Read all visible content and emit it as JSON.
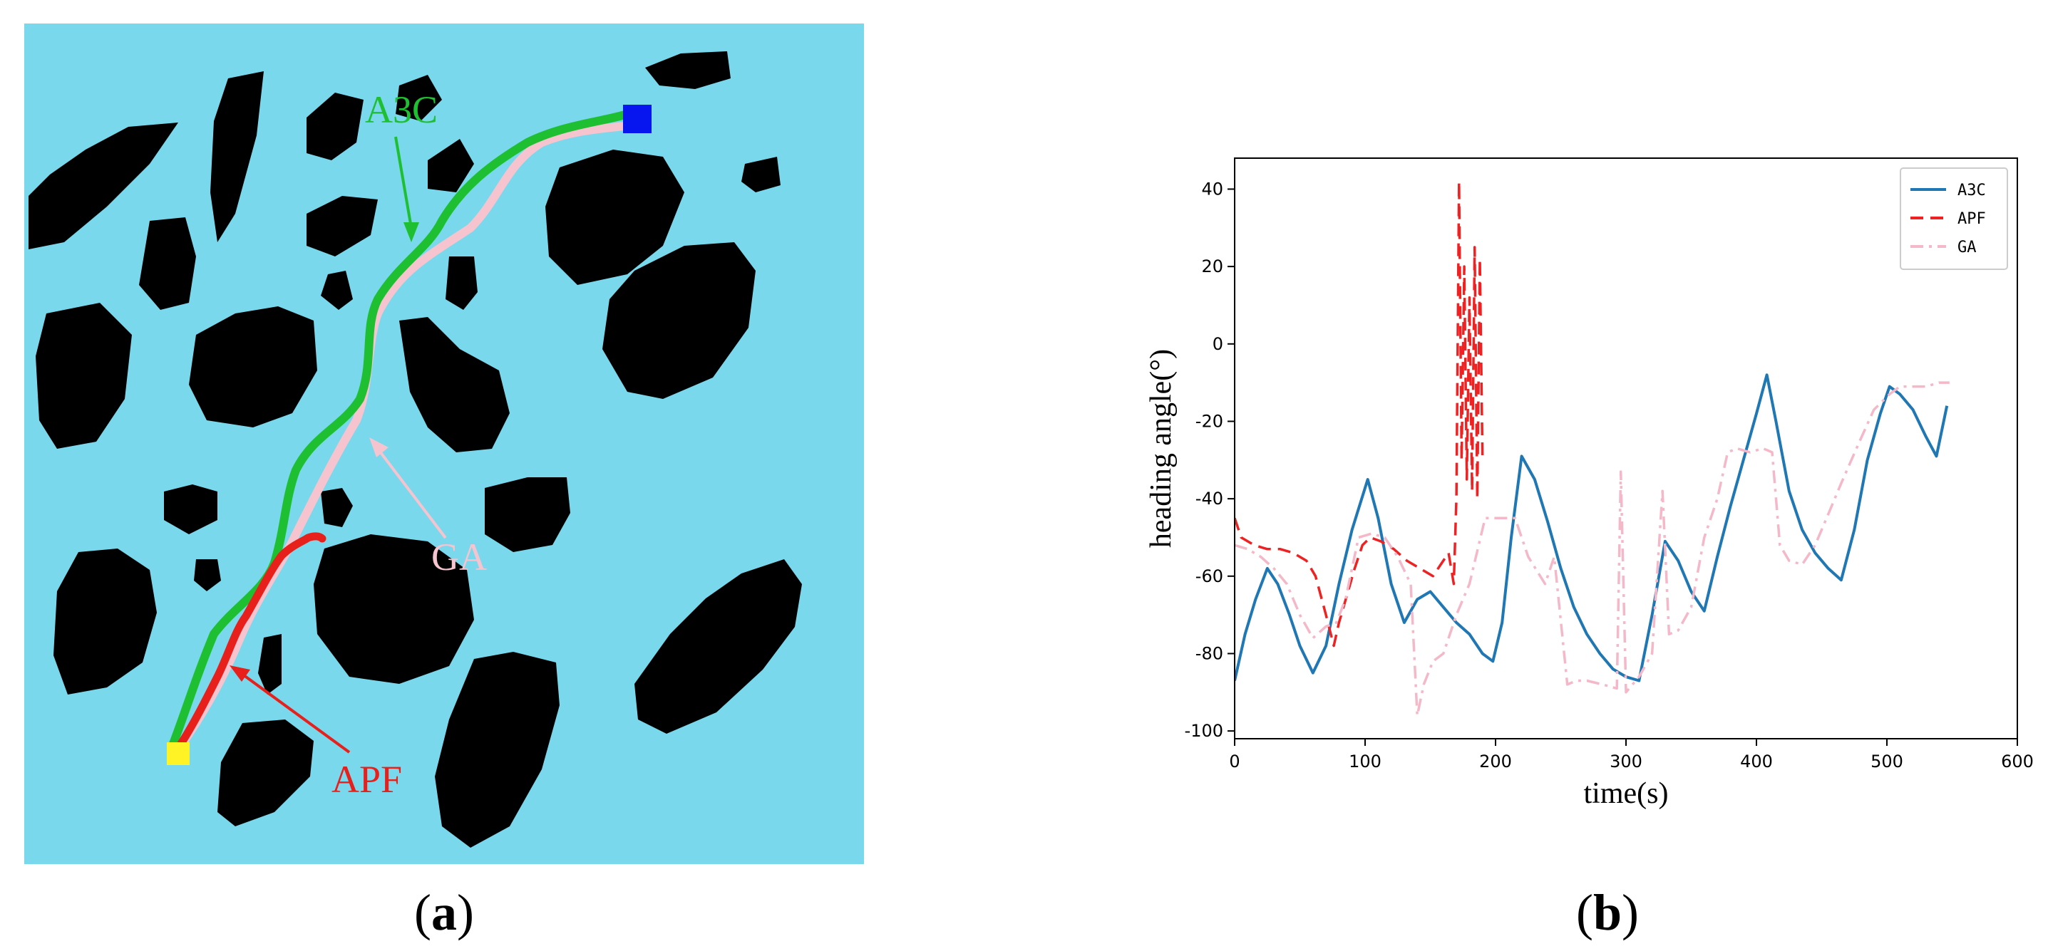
{
  "panel_a": {
    "label_prefix": "(",
    "label_letter": "a",
    "label_suffix": ")",
    "annotations": [
      {
        "text": "A3C",
        "color": "#1fbf32"
      },
      {
        "text": "GA",
        "color": "#f5c4cf"
      },
      {
        "text": "APF",
        "color": "#e8201c"
      }
    ],
    "colors": {
      "water": "#79d8eb",
      "obstacle": "#000000",
      "start": "#fff225",
      "goal": "#0716ee"
    }
  },
  "panel_b": {
    "label_prefix": "(",
    "label_letter": "b",
    "label_suffix": ")"
  },
  "chart_data": {
    "type": "line",
    "xlabel": "time(s)",
    "ylabel": "heading angle(°)",
    "xlim": [
      0,
      600
    ],
    "ylim": [
      -102,
      48
    ],
    "xticks": [
      0,
      100,
      200,
      300,
      400,
      500,
      600
    ],
    "yticks": [
      -100,
      -80,
      -60,
      -40,
      -20,
      0,
      20,
      40
    ],
    "grid": false,
    "legend_position": "top-right",
    "series": [
      {
        "name": "A3C",
        "color": "#1f77b4",
        "style": "solid",
        "x": [
          0,
          8,
          16,
          25,
          33,
          42,
          50,
          60,
          70,
          80,
          90,
          102,
          110,
          120,
          130,
          140,
          150,
          160,
          170,
          180,
          190,
          198,
          205,
          212,
          220,
          230,
          240,
          250,
          260,
          270,
          280,
          290,
          300,
          310,
          320,
          330,
          340,
          350,
          360,
          370,
          380,
          390,
          400,
          408,
          415,
          425,
          435,
          445,
          455,
          465,
          475,
          485,
          495,
          502,
          510,
          520,
          530,
          538,
          546
        ],
        "y": [
          -87,
          -75,
          -66,
          -58,
          -62,
          -70,
          -78,
          -85,
          -78,
          -62,
          -48,
          -35,
          -45,
          -62,
          -72,
          -66,
          -64,
          -68,
          -72,
          -75,
          -80,
          -82,
          -72,
          -50,
          -29,
          -35,
          -46,
          -58,
          -68,
          -75,
          -80,
          -84,
          -86,
          -87,
          -70,
          -51,
          -56,
          -64,
          -69,
          -55,
          -42,
          -30,
          -18,
          -8,
          -20,
          -38,
          -48,
          -54,
          -58,
          -61,
          -48,
          -30,
          -18,
          -11,
          -13,
          -17,
          -24,
          -29,
          -16
        ]
      },
      {
        "name": "APF",
        "color": "#ee2222",
        "style": "dashed",
        "x": [
          0,
          5,
          15,
          25,
          35,
          45,
          55,
          62,
          70,
          76,
          80,
          86,
          92,
          98,
          104,
          112,
          122,
          132,
          142,
          152,
          158,
          164,
          168,
          170,
          172,
          174,
          176,
          178,
          180,
          182,
          184,
          186,
          188,
          190
        ],
        "y": [
          -45,
          -50,
          -52,
          -53,
          -53,
          -54,
          -56,
          -60,
          -70,
          -78,
          -72,
          -65,
          -58,
          -52,
          -50,
          -51,
          -53,
          -56,
          -58,
          -60,
          -57,
          -54,
          -62,
          -40,
          42,
          -30,
          20,
          -35,
          12,
          -38,
          25,
          -40,
          22,
          -30
        ]
      },
      {
        "name": "GA",
        "color": "#f4b8c8",
        "style": "dashdot",
        "x": [
          0,
          10,
          20,
          30,
          40,
          50,
          60,
          70,
          78,
          85,
          95,
          105,
          115,
          125,
          135,
          140,
          145,
          152,
          160,
          170,
          180,
          192,
          205,
          215,
          225,
          238,
          245,
          255,
          262,
          270,
          282,
          293,
          296,
          300,
          310,
          320,
          328,
          333,
          340,
          350,
          360,
          370,
          378,
          385,
          395,
          405,
          412,
          418,
          425,
          435,
          445,
          455,
          465,
          478,
          490,
          502,
          510,
          520,
          530,
          540,
          548
        ],
        "y": [
          -52,
          -53,
          -55,
          -58,
          -62,
          -70,
          -76,
          -73,
          -72,
          -66,
          -50,
          -49,
          -50,
          -55,
          -62,
          -96,
          -88,
          -82,
          -80,
          -70,
          -62,
          -45,
          -45,
          -45,
          -55,
          -62,
          -55,
          -88,
          -87,
          -87,
          -88,
          -89,
          -33,
          -90,
          -86,
          -80,
          -38,
          -75,
          -74,
          -68,
          -50,
          -40,
          -28,
          -27,
          -28,
          -27,
          -28,
          -52,
          -56,
          -57,
          -52,
          -44,
          -36,
          -26,
          -17,
          -13,
          -11,
          -11,
          -11,
          -10,
          -10
        ]
      }
    ]
  }
}
